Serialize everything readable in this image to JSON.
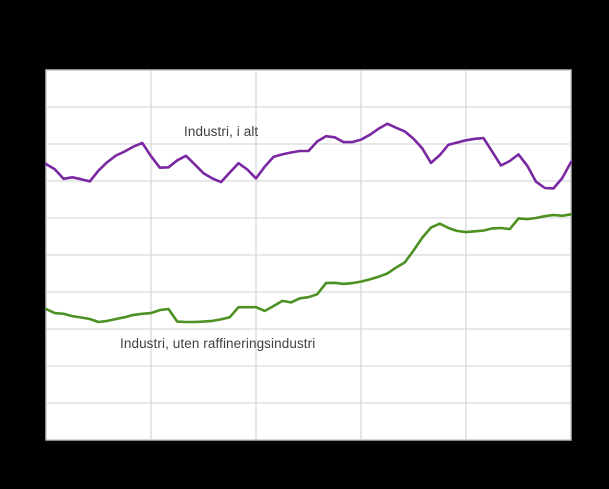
{
  "figure": {
    "background_color": "#000000",
    "plot_background_color": "#ffffff",
    "gridline_color": "#d9d9d9",
    "plot_border_color": "#c6c6c6",
    "label_text_color": "#3f3f3f"
  },
  "chart_data": {
    "type": "line",
    "title": "",
    "xlabel": "",
    "ylabel": "",
    "x_axis": {
      "tick_labels_visible": false,
      "points": 61,
      "gridlines_every_points": 12,
      "divisions": 5
    },
    "y_axis": {
      "tick_labels_visible": false,
      "min": 0,
      "max": 100,
      "gridline_interval": 10,
      "unit": "relative gridline units (axis labels not visible in image)"
    },
    "grid": "on",
    "legend_position": "inline-annotations",
    "series": [
      {
        "name": "Industri, i alt",
        "color": "#7a28a2",
        "line_width": 2.6,
        "values": [
          74.6,
          73.2,
          70.6,
          71.0,
          70.5,
          69.9,
          72.8,
          75.1,
          76.9,
          78.0,
          79.3,
          80.3,
          76.7,
          73.6,
          73.7,
          75.6,
          76.8,
          74.5,
          72.1,
          70.7,
          69.7,
          72.3,
          74.8,
          73.1,
          70.7,
          73.9,
          76.5,
          77.2,
          77.7,
          78.1,
          78.1,
          80.7,
          82.1,
          81.8,
          80.5,
          80.5,
          81.2,
          82.5,
          84.1,
          85.5,
          84.4,
          83.4,
          81.4,
          78.8,
          74.9,
          77.0,
          79.8,
          80.4,
          81.0,
          81.4,
          81.6,
          77.9,
          74.2,
          75.4,
          77.2,
          74.1,
          69.8,
          68.1,
          68.0,
          70.8,
          75.1
        ]
      },
      {
        "name": "Industri, uten raffineringsindustri",
        "color": "#4c9122",
        "line_width": 2.6,
        "values": [
          35.4,
          34.3,
          34.1,
          33.5,
          33.1,
          32.7,
          31.9,
          32.2,
          32.7,
          33.2,
          33.8,
          34.1,
          34.3,
          35.1,
          35.4,
          32.0,
          31.9,
          31.9,
          32.0,
          32.2,
          32.6,
          33.2,
          35.9,
          35.9,
          35.9,
          34.9,
          36.2,
          37.6,
          37.2,
          38.3,
          38.6,
          39.4,
          42.4,
          42.5,
          42.2,
          42.4,
          42.8,
          43.4,
          44.1,
          45.0,
          46.6,
          48.0,
          51.2,
          54.7,
          57.4,
          58.5,
          57.3,
          56.5,
          56.2,
          56.4,
          56.6,
          57.2,
          57.3,
          57.0,
          59.9,
          59.7,
          60.0,
          60.5,
          60.8,
          60.6,
          61.0
        ]
      }
    ]
  }
}
